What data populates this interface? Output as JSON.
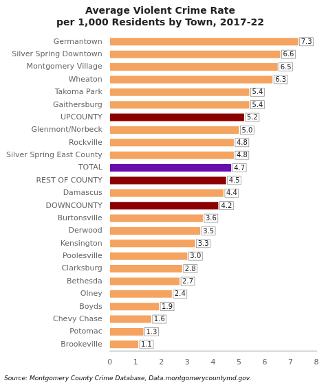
{
  "chart_data": {
    "type": "bar",
    "orientation": "horizontal",
    "title": "Average Violent Crime Rate\nper 1,000 Residents by Town, 2017-22",
    "categories": [
      "Germantown",
      "Silver Spring Downtown",
      "Montgomery Village",
      "Wheaton",
      "Takoma Park",
      "Gaithersburg",
      "UPCOUNTY",
      "Glenmont/Norbeck",
      "Rockville",
      "Silver Spring East County",
      "TOTAL",
      "REST OF COUNTY",
      "Damascus",
      "DOWNCOUNTY",
      "Burtonsville",
      "Derwood",
      "Kensington",
      "Poolesville",
      "Clarksburg",
      "Bethesda",
      "Olney",
      "Boyds",
      "Chevy Chase",
      "Potomac",
      "Brookeville"
    ],
    "values": [
      7.3,
      6.6,
      6.5,
      6.3,
      5.4,
      5.4,
      5.2,
      5.0,
      4.8,
      4.8,
      4.7,
      4.5,
      4.4,
      4.2,
      3.6,
      3.5,
      3.3,
      3.0,
      2.8,
      2.7,
      2.4,
      1.9,
      1.6,
      1.3,
      1.1
    ],
    "value_labels": [
      "7.3",
      "6.6",
      "6.5",
      "6.3",
      "5.4",
      "5.4",
      "5.2",
      "5.0",
      "4.8",
      "4.8",
      "4.7",
      "4.5",
      "4.4",
      "4.2",
      "3.6",
      "3.5",
      "3.3",
      "3.0",
      "2.8",
      "2.7",
      "2.4",
      "1.9",
      "1.6",
      "1.3",
      "1.1"
    ],
    "colors": [
      "#F4A460",
      "#F4A460",
      "#F4A460",
      "#F4A460",
      "#F4A460",
      "#F4A460",
      "#8B0000",
      "#F4A460",
      "#F4A460",
      "#F4A460",
      "#6A0DAD",
      "#8B0000",
      "#F4A460",
      "#8B0000",
      "#F4A460",
      "#F4A460",
      "#F4A460",
      "#F4A460",
      "#F4A460",
      "#F4A460",
      "#F4A460",
      "#F4A460",
      "#F4A460",
      "#F4A460",
      "#F4A460"
    ],
    "xlim": [
      0,
      8
    ],
    "xticks": [
      0,
      1,
      2,
      3,
      4,
      5,
      6,
      7,
      8
    ],
    "data_labels": true,
    "grid": false,
    "annotations": [
      "Source: Montgomery County Crime Database, Data.montgomerycountymd.gov."
    ]
  }
}
